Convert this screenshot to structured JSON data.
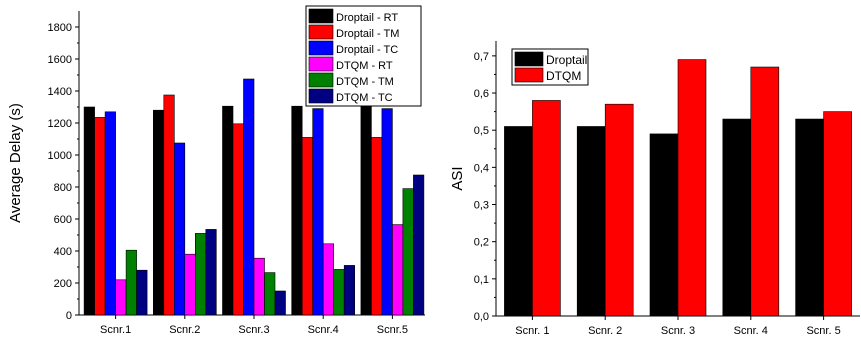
{
  "chart_data": [
    {
      "type": "bar",
      "title": "",
      "xlabel": "",
      "ylabel": "Average Delay (s)",
      "ylim": [
        0,
        1900
      ],
      "yticks": [
        0,
        200,
        400,
        600,
        800,
        1000,
        1200,
        1400,
        1600,
        1800
      ],
      "categories": [
        "Scnr.1",
        "Scnr.2",
        "Scnr.3",
        "Scnr.4",
        "Scnr.5"
      ],
      "legend_position": "top-right",
      "grid": false,
      "series": [
        {
          "name": "Droptail - RT",
          "color": "#000000",
          "values": [
            1300,
            1280,
            1305,
            1305,
            1305
          ]
        },
        {
          "name": "Droptail - TM",
          "color": "#ff0000",
          "values": [
            1235,
            1375,
            1195,
            1110,
            1110
          ]
        },
        {
          "name": "Droptail - TC",
          "color": "#0000ff",
          "values": [
            1270,
            1075,
            1475,
            1290,
            1290
          ]
        },
        {
          "name": "DTQM - RT",
          "color": "#ff00ff",
          "values": [
            220,
            380,
            355,
            445,
            565
          ]
        },
        {
          "name": "DTQM - TM",
          "color": "#008000",
          "values": [
            405,
            510,
            265,
            285,
            790
          ]
        },
        {
          "name": "DTQM - TC",
          "color": "#000080",
          "values": [
            280,
            535,
            150,
            310,
            875
          ]
        }
      ]
    },
    {
      "type": "bar",
      "title": "",
      "xlabel": "",
      "ylabel": "ASI",
      "ylim": [
        0,
        0.74
      ],
      "yticks": [
        "0,0",
        "0,1",
        "0,2",
        "0,3",
        "0,4",
        "0,5",
        "0,6",
        "0,7"
      ],
      "categories": [
        "Scnr. 1",
        "Scnr. 2",
        "Scnr. 3",
        "Scnr. 4",
        "Scnr. 5"
      ],
      "legend_position": "top-left",
      "grid": false,
      "series": [
        {
          "name": "Droptail",
          "color": "#000000",
          "values": [
            0.51,
            0.51,
            0.49,
            0.53,
            0.53
          ]
        },
        {
          "name": "DTQM",
          "color": "#ff0000",
          "values": [
            0.58,
            0.57,
            0.69,
            0.67,
            0.55
          ]
        }
      ]
    }
  ]
}
